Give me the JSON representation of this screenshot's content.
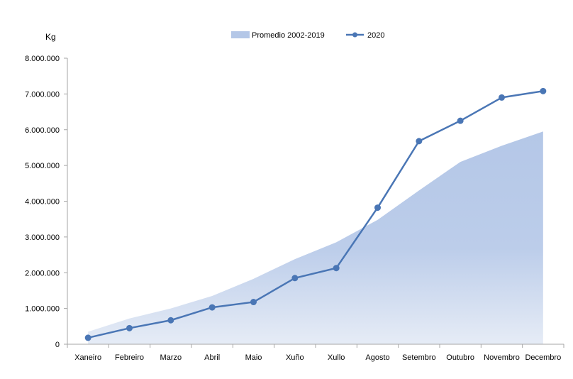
{
  "chart_data": {
    "type": "line",
    "title": "",
    "xlabel": "",
    "ylabel": "Kg",
    "categories": [
      "Xaneiro",
      "Febreiro",
      "Marzo",
      "Abril",
      "Maio",
      "Xuño",
      "Xullo",
      "Agosto",
      "Setembro",
      "Outubro",
      "Novembro",
      "Decembro"
    ],
    "ylim": [
      0,
      8000000
    ],
    "yticks": [
      "0",
      "1.000.000",
      "2.000.000",
      "3.000.000",
      "4.000.000",
      "5.000.000",
      "6.000.000",
      "7.000.000",
      "8.000.000"
    ],
    "ytick_values": [
      0,
      1000000,
      2000000,
      3000000,
      4000000,
      5000000,
      6000000,
      7000000,
      8000000
    ],
    "grid": false,
    "legend_position": "top",
    "series": [
      {
        "name": "Promedio 2002-2019",
        "type": "area",
        "color": "#b4c7e7",
        "values": [
          350000,
          720000,
          1000000,
          1350000,
          1830000,
          2380000,
          2850000,
          3480000,
          4300000,
          5100000,
          5550000,
          5950000
        ]
      },
      {
        "name": "2020",
        "type": "line",
        "color": "#4a76b5",
        "values": [
          180000,
          450000,
          670000,
          1030000,
          1180000,
          1850000,
          2130000,
          3820000,
          5680000,
          6250000,
          6900000,
          7080000
        ]
      }
    ]
  }
}
